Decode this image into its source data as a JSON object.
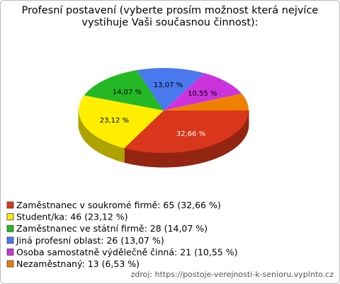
{
  "chart_data": {
    "type": "pie",
    "title": "Profesní postavení (vyberte prosím možnost která nejvíce vystihuje Vaši současnou činnost):",
    "categories": [
      "Zaměstnanec v soukromé firmě: 65 (32,66 %)",
      "Student/ka: 46 (23,12 %)",
      "Zaměstnanec ve státní firmě: 28 (14,07 %)",
      "Jiná profesní oblast: 26 (13,07 %)",
      "Osoba samostatně výdělečně činná: 21 (10,55 %)",
      "Nezaměstnaný: 13 (6,53 %)"
    ],
    "values": [
      32.66,
      23.12,
      14.07,
      13.07,
      10.55,
      6.53
    ],
    "value_labels": [
      "32,66 %",
      "23,12 %",
      "14,07 %",
      "13,07 %",
      "10,55 %",
      null
    ],
    "colors": [
      "#d9361b",
      "#ffee00",
      "#25b825",
      "#4a78ee",
      "#cc33dd",
      "#f08000"
    ],
    "source": "zdroj: https://postoje-verejnosti-k-senioru.vyplnto.cz"
  }
}
